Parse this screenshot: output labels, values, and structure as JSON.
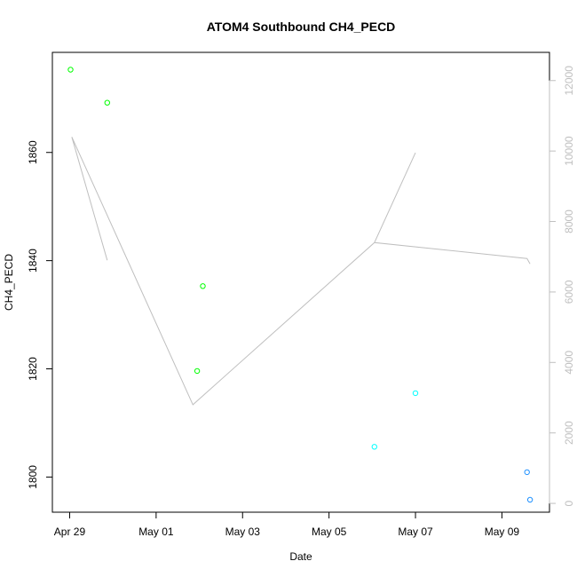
{
  "chart_data": {
    "type": "scatter",
    "title": "ATOM4 Southbound CH4_PECD",
    "xlabel": "Date",
    "ylabel": "CH4_PECD",
    "x_ticks": [
      "Apr 29",
      "May 01",
      "May 03",
      "May 05",
      "May 07",
      "May 09"
    ],
    "x_tick_days": [
      0,
      2,
      4,
      6,
      8,
      10
    ],
    "xlim_days": [
      -0.4,
      11.1
    ],
    "ylim": [
      1793.5,
      1878.5
    ],
    "y_ticks": [
      1800,
      1820,
      1840,
      1860
    ],
    "y2lim": [
      -250,
      12800
    ],
    "y2_ticks": [
      0,
      2000,
      4000,
      6000,
      8000,
      10000,
      12000
    ],
    "points": [
      {
        "day": 0.02,
        "value": 1875.3,
        "color": "#00ff00"
      },
      {
        "day": 0.87,
        "value": 1869.2,
        "color": "#00ff00"
      },
      {
        "day": 2.95,
        "value": 1819.6,
        "color": "#00ff00"
      },
      {
        "day": 3.08,
        "value": 1835.3,
        "color": "#00ff00"
      },
      {
        "day": 7.05,
        "value": 1805.6,
        "color": "#00ffff"
      },
      {
        "day": 8.0,
        "value": 1815.5,
        "color": "#00ffff"
      },
      {
        "day": 10.58,
        "value": 1800.9,
        "color": "#1e90ff"
      },
      {
        "day": 10.65,
        "value": 1795.8,
        "color": "#1e90ff"
      }
    ],
    "line_series": {
      "axis": "right",
      "color": "#bfbfbf",
      "points": [
        {
          "day": 0.05,
          "value": 10400
        },
        {
          "day": 0.87,
          "value": 6900
        },
        {
          "day": 0.05,
          "value": 10400
        },
        {
          "day": 2.85,
          "value": 2800
        },
        {
          "day": 7.05,
          "value": 7400
        },
        {
          "day": 8.0,
          "value": 9950
        },
        {
          "day": 7.05,
          "value": 7400
        },
        {
          "day": 10.58,
          "value": 6950
        },
        {
          "day": 10.65,
          "value": 6800
        }
      ]
    }
  }
}
